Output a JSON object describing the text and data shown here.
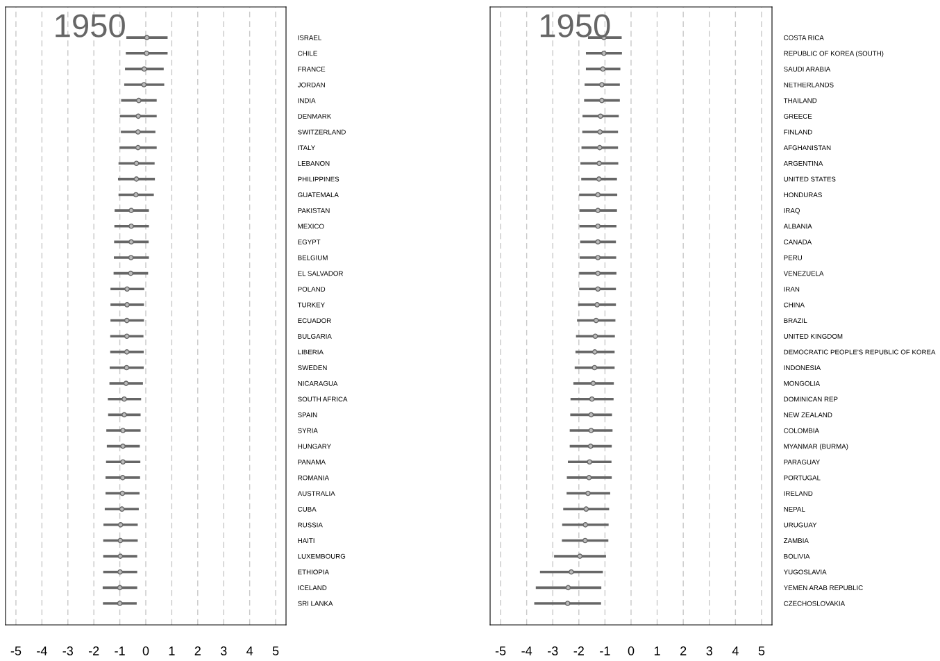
{
  "chart_data": [
    {
      "type": "scatter",
      "orientation": "horizontal",
      "annotations": [
        "1950"
      ],
      "color": "#666666",
      "marker": "circle",
      "grid": "x",
      "xlim": [
        -5.4,
        5.4
      ],
      "xticks": [
        -5,
        -4,
        -3,
        -2,
        -1,
        0,
        1,
        2,
        3,
        4,
        5
      ],
      "categories": [
        "ISRAEL",
        "CHILE",
        "FRANCE",
        "JORDAN",
        "INDIA",
        "DENMARK",
        "SWITZERLAND",
        "ITALY",
        "LEBANON",
        "PHILIPPINES",
        "GUATEMALA",
        "PAKISTAN",
        "MEXICO",
        "EGYPT",
        "BELGIUM",
        "EL SALVADOR",
        "POLAND",
        "TURKEY",
        "ECUADOR",
        "BULGARIA",
        "LIBERIA",
        "SWEDEN",
        "NICARAGUA",
        "SOUTH AFRICA",
        "SPAIN",
        "SYRIA",
        "HUNGARY",
        "PANAMA",
        "ROMANIA",
        "AUSTRALIA",
        "CUBA",
        "RUSSIA",
        "HAITI",
        "LUXEMBOURG",
        "ETHIOPIA",
        "ICELAND",
        "SRI LANKA"
      ],
      "values": [
        0.04,
        0.03,
        -0.06,
        -0.07,
        -0.27,
        -0.29,
        -0.3,
        -0.3,
        -0.36,
        -0.36,
        -0.38,
        -0.56,
        -0.56,
        -0.56,
        -0.57,
        -0.58,
        -0.72,
        -0.72,
        -0.73,
        -0.73,
        -0.73,
        -0.74,
        -0.76,
        -0.83,
        -0.83,
        -0.88,
        -0.88,
        -0.88,
        -0.89,
        -0.9,
        -0.92,
        -0.97,
        -0.98,
        -0.98,
        -0.99,
        -1.0,
        -1.0
      ],
      "errors": [
        [
          -0.75,
          0.84
        ],
        [
          -0.77,
          0.84
        ],
        [
          -0.8,
          0.69
        ],
        [
          -0.83,
          0.71
        ],
        [
          -0.95,
          0.42
        ],
        [
          -1.0,
          0.42
        ],
        [
          -0.96,
          0.37
        ],
        [
          -1.01,
          0.42
        ],
        [
          -1.05,
          0.34
        ],
        [
          -1.07,
          0.35
        ],
        [
          -1.05,
          0.31
        ],
        [
          -1.2,
          0.12
        ],
        [
          -1.21,
          0.12
        ],
        [
          -1.22,
          0.11
        ],
        [
          -1.23,
          0.12
        ],
        [
          -1.24,
          0.09
        ],
        [
          -1.36,
          -0.06
        ],
        [
          -1.36,
          -0.07
        ],
        [
          -1.36,
          -0.07
        ],
        [
          -1.37,
          -0.09
        ],
        [
          -1.37,
          -0.08
        ],
        [
          -1.39,
          -0.08
        ],
        [
          -1.4,
          -0.11
        ],
        [
          -1.46,
          -0.18
        ],
        [
          -1.45,
          -0.2
        ],
        [
          -1.52,
          -0.2
        ],
        [
          -1.5,
          -0.23
        ],
        [
          -1.53,
          -0.21
        ],
        [
          -1.55,
          -0.22
        ],
        [
          -1.55,
          -0.24
        ],
        [
          -1.58,
          -0.27
        ],
        [
          -1.63,
          -0.31
        ],
        [
          -1.64,
          -0.31
        ],
        [
          -1.64,
          -0.33
        ],
        [
          -1.64,
          -0.33
        ],
        [
          -1.66,
          -0.33
        ],
        [
          -1.65,
          -0.35
        ]
      ]
    },
    {
      "type": "scatter",
      "orientation": "horizontal",
      "annotations": [
        "1950"
      ],
      "color": "#666666",
      "marker": "circle",
      "grid": "x",
      "xlim": [
        -5.4,
        5.4
      ],
      "xticks": [
        -5,
        -4,
        -3,
        -2,
        -1,
        0,
        1,
        2,
        3,
        4,
        5
      ],
      "categories": [
        "COSTA RICA",
        "REPUBLIC OF KOREA (SOUTH)",
        "SAUDI ARABIA",
        "NETHERLANDS",
        "THAILAND",
        "GREECE",
        "FINLAND",
        "AFGHANISTAN",
        "ARGENTINA",
        "UNITED STATES",
        "HONDURAS",
        "IRAQ",
        "ALBANIA",
        "CANADA",
        "PERU",
        "VENEZUELA",
        "IRAN",
        "CHINA",
        "BRAZIL",
        "UNITED KINGDOM",
        "DEMOCRATIC PEOPLE'S REPUBLIC OF KOREA",
        "INDONESIA",
        "MONGOLIA",
        "DOMINICAN REP",
        "NEW ZEALAND",
        "COLOMBIA",
        "MYANMAR (BURMA)",
        "PARAGUAY",
        "PORTUGAL",
        "IRELAND",
        "NEPAL",
        "URUGUAY",
        "ZAMBIA",
        "BOLIVIA",
        "YUGOSLAVIA",
        "YEMEN ARAB REPUBLIC",
        "CZECHOSLOVAKIA"
      ],
      "values": [
        -1.04,
        -1.04,
        -1.08,
        -1.12,
        -1.12,
        -1.17,
        -1.19,
        -1.2,
        -1.22,
        -1.23,
        -1.27,
        -1.27,
        -1.27,
        -1.27,
        -1.27,
        -1.27,
        -1.27,
        -1.3,
        -1.34,
        -1.37,
        -1.39,
        -1.4,
        -1.45,
        -1.5,
        -1.53,
        -1.53,
        -1.55,
        -1.59,
        -1.61,
        -1.65,
        -1.72,
        -1.75,
        -1.76,
        -1.96,
        -2.29,
        -2.41,
        -2.43
      ],
      "errors": [
        [
          -1.65,
          -0.36
        ],
        [
          -1.73,
          -0.35
        ],
        [
          -1.73,
          -0.41
        ],
        [
          -1.78,
          -0.43
        ],
        [
          -1.8,
          -0.43
        ],
        [
          -1.86,
          -0.47
        ],
        [
          -1.87,
          -0.5
        ],
        [
          -1.9,
          -0.5
        ],
        [
          -1.94,
          -0.49
        ],
        [
          -1.91,
          -0.54
        ],
        [
          -1.99,
          -0.53
        ],
        [
          -1.98,
          -0.54
        ],
        [
          -1.98,
          -0.56
        ],
        [
          -1.95,
          -0.58
        ],
        [
          -1.97,
          -0.57
        ],
        [
          -1.99,
          -0.56
        ],
        [
          -1.99,
          -0.58
        ],
        [
          -2.03,
          -0.58
        ],
        [
          -2.07,
          -0.6
        ],
        [
          -2.11,
          -0.62
        ],
        [
          -2.13,
          -0.63
        ],
        [
          -2.16,
          -0.63
        ],
        [
          -2.21,
          -0.66
        ],
        [
          -2.32,
          -0.67
        ],
        [
          -2.33,
          -0.73
        ],
        [
          -2.35,
          -0.71
        ],
        [
          -2.35,
          -0.74
        ],
        [
          -2.42,
          -0.75
        ],
        [
          -2.46,
          -0.74
        ],
        [
          -2.47,
          -0.8
        ],
        [
          -2.6,
          -0.84
        ],
        [
          -2.64,
          -0.86
        ],
        [
          -2.65,
          -0.87
        ],
        [
          -2.95,
          -0.96
        ],
        [
          -3.49,
          -1.08
        ],
        [
          -3.65,
          -1.14
        ],
        [
          -3.71,
          -1.15
        ]
      ]
    }
  ]
}
